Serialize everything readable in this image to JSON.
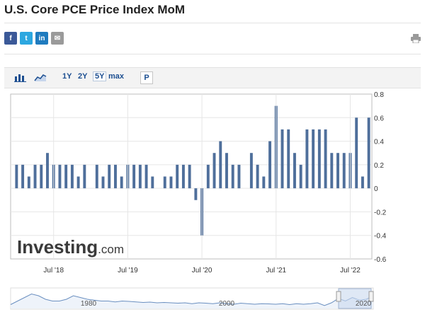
{
  "page": {
    "title": "U.S. Core PCE Price Index MoM",
    "share": {
      "facebook": "f",
      "twitter": "t",
      "linkedin": "in",
      "email": "✉"
    },
    "toolbar": {
      "range_1y": "1Y",
      "range_2y": "2Y",
      "range_5y": "5Y",
      "range_max": "max",
      "p_button": "P"
    },
    "watermark": {
      "main": "Investing",
      "suffix": ".com"
    },
    "navigator": {
      "labels": [
        "1980",
        "2000",
        "2020"
      ]
    }
  },
  "colors": {
    "bar": "#4f6f9b",
    "bar_edge": "#35547e",
    "grid": "#e6e6e6",
    "axis": "#bdbdbd",
    "nav_line": "#6a8fc0",
    "nav_sel": "#c9d8ef"
  },
  "chart_data": {
    "type": "bar",
    "title": "U.S. Core PCE Price Index MoM",
    "xlabel": "",
    "ylabel": "",
    "unit": "%",
    "ylim": [
      -0.6,
      0.8
    ],
    "y_ticks": [
      0.8,
      0.6,
      0.4,
      0.2,
      0,
      -0.2,
      -0.4,
      -0.6
    ],
    "x_labels": [
      {
        "label": "Jul '18",
        "index": 6
      },
      {
        "label": "Jul '19",
        "index": 18
      },
      {
        "label": "Jul '20",
        "index": 30
      },
      {
        "label": "Jul '21",
        "index": 42
      },
      {
        "label": "Jul '22",
        "index": 54
      }
    ],
    "series": [
      {
        "name": "Core PCE Price Index MoM",
        "values": [
          0.2,
          0.2,
          0.1,
          0.2,
          0.2,
          0.3,
          0.2,
          0.2,
          0.2,
          0.2,
          0.1,
          0.2,
          0.0,
          0.2,
          0.1,
          0.2,
          0.2,
          0.1,
          0.2,
          0.2,
          0.2,
          0.2,
          0.1,
          0.0,
          0.1,
          0.1,
          0.2,
          0.2,
          0.2,
          -0.1,
          -0.4,
          0.2,
          0.3,
          0.4,
          0.3,
          0.2,
          0.2,
          0.0,
          0.3,
          0.2,
          0.1,
          0.4,
          0.7,
          0.5,
          0.5,
          0.3,
          0.2,
          0.5,
          0.5,
          0.5,
          0.5,
          0.3,
          0.3,
          0.3,
          0.3,
          0.6,
          0.1,
          0.6
        ]
      }
    ],
    "navigator_series": [
      0.1,
      0.3,
      0.5,
      0.7,
      0.6,
      0.4,
      0.3,
      0.3,
      0.4,
      0.6,
      0.5,
      0.4,
      0.35,
      0.3,
      0.3,
      0.25,
      0.3,
      0.28,
      0.25,
      0.22,
      0.24,
      0.2,
      0.22,
      0.2,
      0.18,
      0.2,
      0.15,
      0.2,
      0.18,
      0.15,
      0.2,
      0.15,
      0.12,
      0.18,
      0.15,
      0.12,
      0.15,
      0.14,
      0.12,
      0.15,
      0.1,
      0.15,
      0.12,
      0.15,
      0.2,
      0.05,
      0.2,
      0.45,
      0.3,
      0.5,
      0.35,
      0.4,
      0.6
    ]
  }
}
